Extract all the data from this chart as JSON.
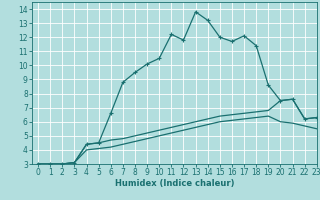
{
  "xlabel": "Humidex (Indice chaleur)",
  "bg_color": "#b2dede",
  "grid_color": "#ffffff",
  "line_color": "#1a7070",
  "xlim": [
    -0.5,
    23
  ],
  "ylim": [
    3,
    14.5
  ],
  "xticks": [
    0,
    1,
    2,
    3,
    4,
    5,
    6,
    7,
    8,
    9,
    10,
    11,
    12,
    13,
    14,
    15,
    16,
    17,
    18,
    19,
    20,
    21,
    22,
    23
  ],
  "yticks": [
    3,
    4,
    5,
    6,
    7,
    8,
    9,
    10,
    11,
    12,
    13,
    14
  ],
  "line1_x": [
    0,
    1,
    2,
    3,
    4,
    5,
    6,
    7,
    8,
    9,
    10,
    11,
    12,
    13,
    14,
    15,
    16,
    17,
    18,
    19,
    20,
    21,
    22,
    23
  ],
  "line1_y": [
    3.0,
    3.0,
    3.0,
    3.1,
    4.4,
    4.5,
    6.6,
    8.8,
    9.5,
    10.1,
    10.5,
    12.2,
    11.8,
    13.8,
    13.2,
    12.0,
    11.7,
    12.1,
    11.4,
    8.6,
    7.5,
    7.6,
    6.2,
    6.3
  ],
  "line2_x": [
    0,
    1,
    2,
    3,
    4,
    5,
    6,
    7,
    8,
    9,
    10,
    11,
    12,
    13,
    14,
    15,
    16,
    17,
    18,
    19,
    20,
    21,
    22,
    23
  ],
  "line2_y": [
    3.0,
    3.0,
    3.0,
    3.1,
    4.4,
    4.5,
    4.7,
    4.8,
    5.0,
    5.2,
    5.4,
    5.6,
    5.8,
    6.0,
    6.2,
    6.4,
    6.5,
    6.6,
    6.7,
    6.8,
    7.5,
    7.6,
    6.2,
    6.3
  ],
  "line3_x": [
    0,
    1,
    2,
    3,
    4,
    5,
    6,
    7,
    8,
    9,
    10,
    11,
    12,
    13,
    14,
    15,
    16,
    17,
    18,
    19,
    20,
    21,
    22,
    23
  ],
  "line3_y": [
    3.0,
    3.0,
    3.0,
    3.1,
    4.0,
    4.1,
    4.2,
    4.4,
    4.6,
    4.8,
    5.0,
    5.2,
    5.4,
    5.6,
    5.8,
    6.0,
    6.1,
    6.2,
    6.3,
    6.4,
    6.0,
    5.9,
    5.7,
    5.5
  ],
  "xlabel_fontsize": 6,
  "tick_fontsize": 5.5,
  "lw": 0.9
}
